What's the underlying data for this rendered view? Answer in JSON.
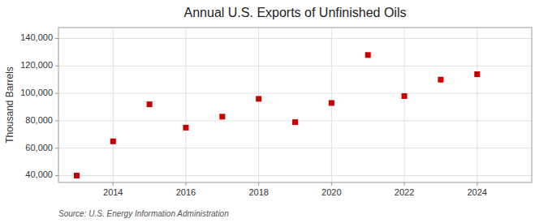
{
  "chart_data": {
    "type": "scatter",
    "title": "Annual U.S. Exports of Unfinished Oils",
    "y_label": "Thousand Barrels",
    "source": "Source: U.S. Energy Information Administration",
    "x": [
      2013,
      2014,
      2015,
      2016,
      2017,
      2018,
      2019,
      2020,
      2021,
      2022,
      2023,
      2024
    ],
    "values": [
      40000,
      65000,
      92000,
      75000,
      83000,
      96000,
      79000,
      93000,
      128000,
      98000,
      110000,
      114000
    ],
    "color": "#cc0000",
    "marker": "square",
    "grid": true,
    "xlim": [
      2012.5,
      2025.5
    ],
    "ylim": [
      35000,
      148000
    ],
    "xticks": [
      2014,
      2016,
      2018,
      2020,
      2022,
      2024
    ],
    "yticks": [
      {
        "value": 40000,
        "label": "40,000"
      },
      {
        "value": 60000,
        "label": "60,000"
      },
      {
        "value": 80000,
        "label": "80,000"
      },
      {
        "value": 100000,
        "label": "100,000"
      },
      {
        "value": 120000,
        "label": "120,000"
      },
      {
        "value": 140000,
        "label": "140,000"
      }
    ]
  }
}
